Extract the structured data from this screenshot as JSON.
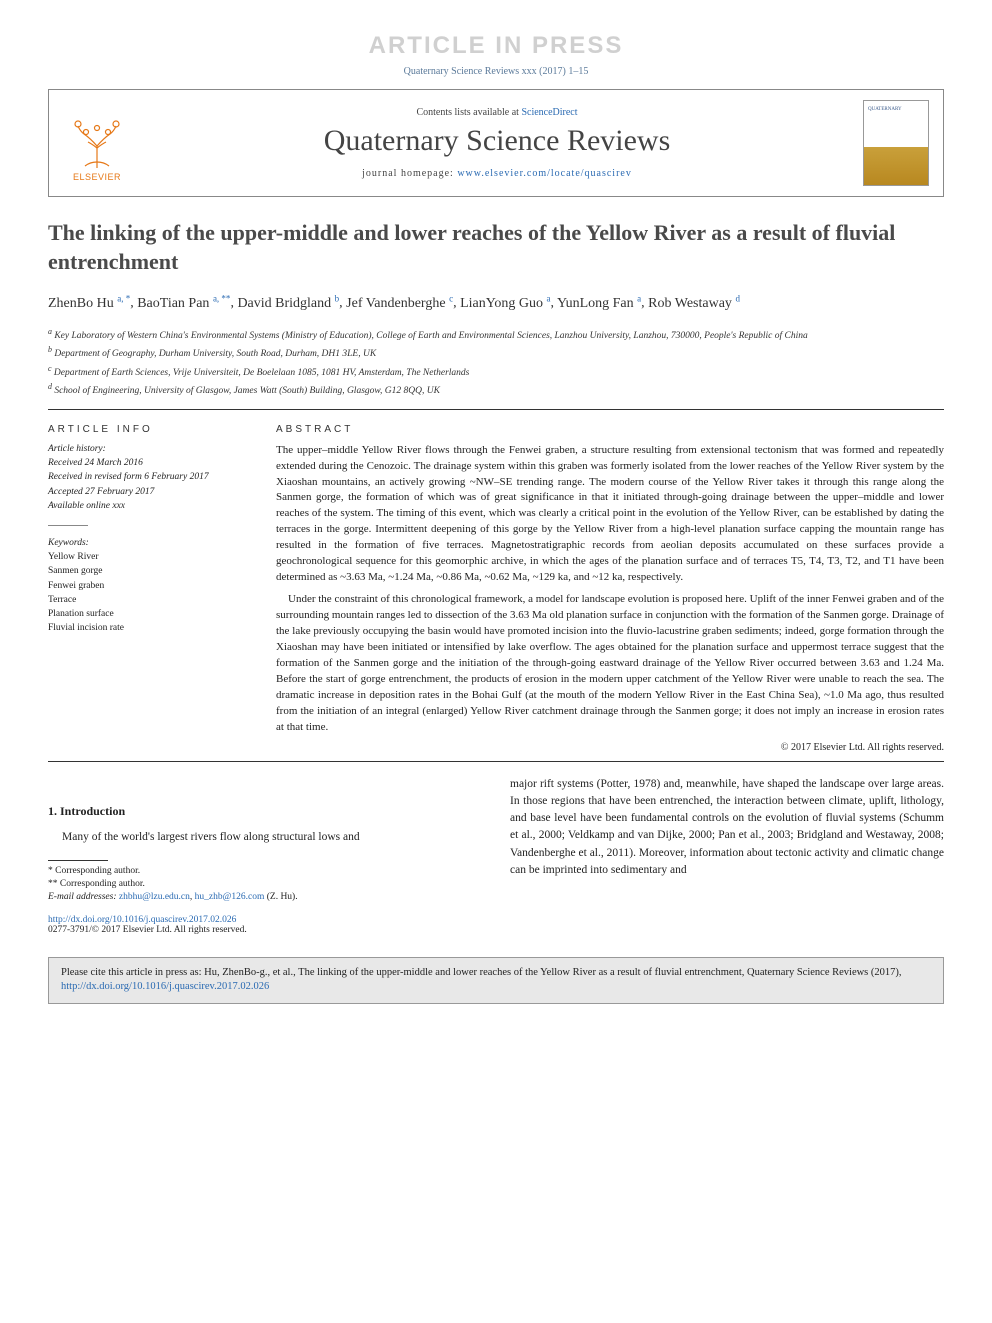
{
  "watermark": "ARTICLE IN PRESS",
  "topRef": "Quaternary Science Reviews xxx (2017) 1–15",
  "header": {
    "contentsPrefix": "Contents lists available at ",
    "contentsLink": "ScienceDirect",
    "journalName": "Quaternary Science Reviews",
    "homepagePrefix": "journal homepage: ",
    "homepageUrl": "www.elsevier.com/locate/quascirev",
    "elsevierLabel": "ELSEVIER",
    "coverTitle": "QUATERNARY"
  },
  "title": "The linking of the upper-middle and lower reaches of the Yellow River as a result of fluvial entrenchment",
  "authors": [
    {
      "name": "ZhenBo Hu",
      "aff": "a, *"
    },
    {
      "name": "BaoTian Pan",
      "aff": "a, **"
    },
    {
      "name": "David Bridgland",
      "aff": "b"
    },
    {
      "name": "Jef Vandenberghe",
      "aff": "c"
    },
    {
      "name": "LianYong Guo",
      "aff": "a"
    },
    {
      "name": "YunLong Fan",
      "aff": "a"
    },
    {
      "name": "Rob Westaway",
      "aff": "d"
    }
  ],
  "affiliations": [
    {
      "key": "a",
      "text": "Key Laboratory of Western China's Environmental Systems (Ministry of Education), College of Earth and Environmental Sciences, Lanzhou University, Lanzhou, 730000, People's Republic of China"
    },
    {
      "key": "b",
      "text": "Department of Geography, Durham University, South Road, Durham, DH1 3LE, UK"
    },
    {
      "key": "c",
      "text": "Department of Earth Sciences, Vrije Universiteit, De Boelelaan 1085, 1081 HV, Amsterdam, The Netherlands"
    },
    {
      "key": "d",
      "text": "School of Engineering, University of Glasgow, James Watt (South) Building, Glasgow, G12 8QQ, UK"
    }
  ],
  "infoHeading": "ARTICLE INFO",
  "abstractHeading": "ABSTRACT",
  "history": {
    "label": "Article history:",
    "received": "Received 24 March 2016",
    "revised": "Received in revised form 6 February 2017",
    "accepted": "Accepted 27 February 2017",
    "online": "Available online xxx"
  },
  "keywordsLabel": "Keywords:",
  "keywords": [
    "Yellow River",
    "Sanmen gorge",
    "Fenwei graben",
    "Terrace",
    "Planation surface",
    "Fluvial incision rate"
  ],
  "abstract": {
    "p1": "The upper–middle Yellow River flows through the Fenwei graben, a structure resulting from extensional tectonism that was formed and repeatedly extended during the Cenozoic. The drainage system within this graben was formerly isolated from the lower reaches of the Yellow River system by the Xiaoshan mountains, an actively growing ~NW–SE trending range. The modern course of the Yellow River takes it through this range along the Sanmen gorge, the formation of which was of great significance in that it initiated through-going drainage between the upper–middle and lower reaches of the system. The timing of this event, which was clearly a critical point in the evolution of the Yellow River, can be established by dating the terraces in the gorge. Intermittent deepening of this gorge by the Yellow River from a high-level planation surface capping the mountain range has resulted in the formation of five terraces. Magnetostratigraphic records from aeolian deposits accumulated on these surfaces provide a geochronological sequence for this geomorphic archive, in which the ages of the planation surface and of terraces T5, T4, T3, T2, and T1 have been determined as ~3.63 Ma, ~1.24 Ma, ~0.86 Ma, ~0.62 Ma, ~129 ka, and ~12 ka, respectively.",
    "p2": "Under the constraint of this chronological framework, a model for landscape evolution is proposed here. Uplift of the inner Fenwei graben and of the surrounding mountain ranges led to dissection of the 3.63 Ma old planation surface in conjunction with the formation of the Sanmen gorge. Drainage of the lake previously occupying the basin would have promoted incision into the fluvio-lacustrine graben sediments; indeed, gorge formation through the Xiaoshan may have been initiated or intensified by lake overflow. The ages obtained for the planation surface and uppermost terrace suggest that the formation of the Sanmen gorge and the initiation of the through-going eastward drainage of the Yellow River occurred between 3.63 and 1.24 Ma. Before the start of gorge entrenchment, the products of erosion in the modern upper catchment of the Yellow River were unable to reach the sea. The dramatic increase in deposition rates in the Bohai Gulf (at the mouth of the modern Yellow River in the East China Sea), ~1.0 Ma ago, thus resulted from the initiation of an integral (enlarged) Yellow River catchment drainage through the Sanmen gorge; it does not imply an increase in erosion rates at that time."
  },
  "copyright": "© 2017 Elsevier Ltd. All rights reserved.",
  "introHeading": "1. Introduction",
  "intro": {
    "col1": "Many of the world's largest rivers flow along structural lows and",
    "col2a": "major rift systems (",
    "col2link1": "Potter, 1978",
    "col2b": ") and, meanwhile, have shaped the landscape over large areas. In those regions that have been entrenched, the interaction between climate, uplift, lithology, and base level have been fundamental controls on the evolution of fluvial systems (",
    "col2link2": "Schumm et al., 2000; Veldkamp and van Dijke, 2000; Pan et al., 2003; Bridgland and Westaway, 2008; Vandenberghe et al., 2011",
    "col2c": "). Moreover, information about tectonic activity and climatic change can be imprinted into sedimentary and"
  },
  "footnotes": {
    "corr1": "* Corresponding author.",
    "corr2": "** Corresponding author.",
    "emailLabel": "E-mail addresses: ",
    "email1": "zhbhu@lzu.edu.cn",
    "emailSep": ", ",
    "email2": "hu_zhb@126.com",
    "emailTail": " (Z. Hu)."
  },
  "doi": {
    "url": "http://dx.doi.org/10.1016/j.quascirev.2017.02.026",
    "issn": "0277-3791/© 2017 Elsevier Ltd. All rights reserved."
  },
  "citeBox": {
    "prefix": "Please cite this article in press as: Hu, ZhenBo-g., et al., The linking of the upper-middle and lower reaches of the Yellow River as a result of fluvial entrenchment, Quaternary Science Reviews (2017), ",
    "link": "http://dx.doi.org/10.1016/j.quascirev.2017.02.026"
  }
}
